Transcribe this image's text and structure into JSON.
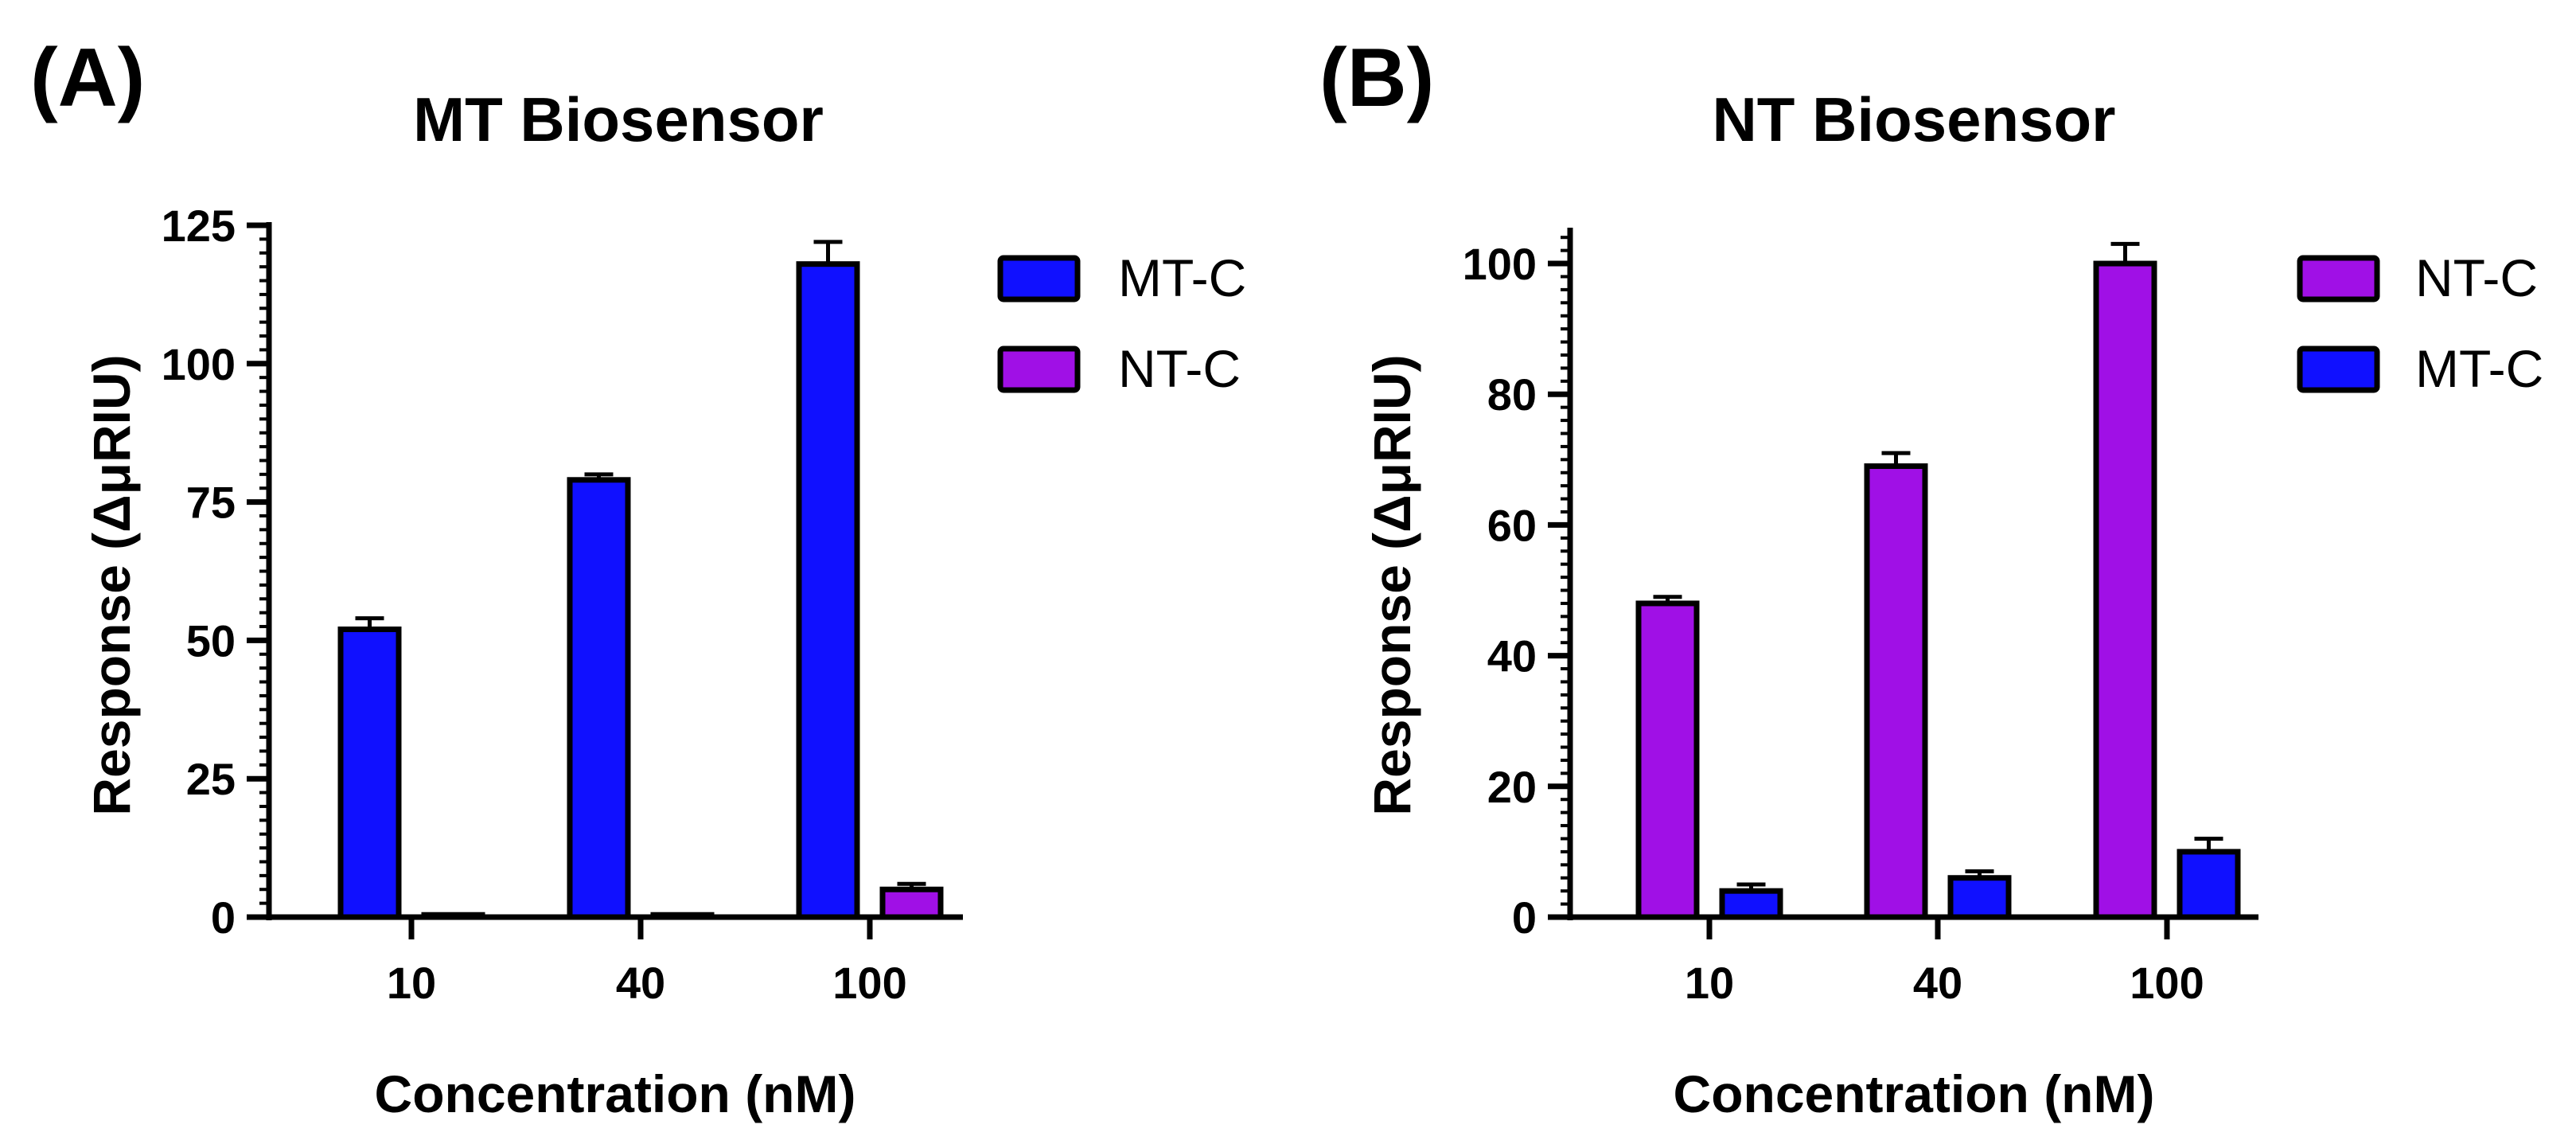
{
  "chart_data": [
    {
      "type": "bar",
      "panel_label": "(A)",
      "title": "MT Biosensor",
      "xlabel": "Concentration (nM)",
      "ylabel": "Response (ΔμRIU)",
      "categories": [
        "10",
        "40",
        "100"
      ],
      "ylim": [
        0,
        125
      ],
      "yticks": [
        0,
        25,
        50,
        75,
        100,
        125
      ],
      "yticks_labels": [
        "0",
        "25",
        "50",
        "75",
        "100",
        "125"
      ],
      "minor_tick_step": 2.5,
      "legend_position": "right",
      "series": [
        {
          "name": "MT-C",
          "color": "#1010ff",
          "values": [
            52,
            79,
            118
          ],
          "errors": [
            2,
            1,
            4
          ]
        },
        {
          "name": "NT-C",
          "color": "#a010e6",
          "values": [
            0.4,
            0.4,
            5
          ],
          "errors": [
            0,
            0,
            1
          ]
        }
      ]
    },
    {
      "type": "bar",
      "panel_label": "(B)",
      "title": "NT Biosensor",
      "xlabel": "Concentration (nM)",
      "ylabel": "Response (ΔμRIU)",
      "categories": [
        "10",
        "40",
        "100"
      ],
      "ylim": [
        0,
        105
      ],
      "yticks": [
        0,
        20,
        40,
        60,
        80,
        100
      ],
      "yticks_labels": [
        "0",
        "20",
        "40",
        "60",
        "80",
        "100"
      ],
      "minor_tick_step": 2,
      "legend_position": "right",
      "series": [
        {
          "name": "NT-C",
          "color": "#a010e6",
          "values": [
            48,
            69,
            100
          ],
          "errors": [
            1,
            2,
            3
          ]
        },
        {
          "name": "MT-C",
          "color": "#1010ff",
          "values": [
            4,
            6,
            10
          ],
          "errors": [
            1,
            1,
            2
          ]
        }
      ]
    }
  ]
}
